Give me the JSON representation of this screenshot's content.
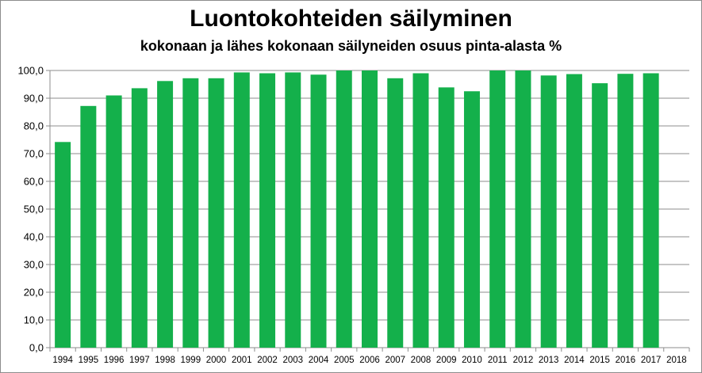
{
  "chart_data": {
    "type": "bar",
    "title": "Luontokohteiden säilyminen",
    "subtitle": "kokonaan ja lähes kokonaan säilyneiden  osuus pinta-alasta %",
    "xlabel": "",
    "ylabel": "",
    "categories": [
      "1994",
      "1995",
      "1996",
      "1997",
      "1998",
      "1999",
      "2000",
      "2001",
      "2002",
      "2003",
      "2004",
      "2005",
      "2006",
      "2007",
      "2008",
      "2009",
      "2010",
      "2011",
      "2012",
      "2013",
      "2014",
      "2015",
      "2016",
      "2017",
      "2018"
    ],
    "values": [
      74.2,
      87.2,
      91.0,
      93.6,
      96.2,
      97.2,
      97.2,
      99.3,
      99.0,
      99.3,
      98.5,
      100.0,
      100.0,
      97.2,
      99.0,
      93.9,
      92.5,
      100.0,
      100.0,
      98.2,
      98.7,
      95.4,
      98.8,
      99.0,
      null
    ],
    "ylim": [
      0,
      100
    ],
    "yticks": [
      "0,0",
      "10,0",
      "20,0",
      "30,0",
      "40,0",
      "50,0",
      "60,0",
      "70,0",
      "80,0",
      "90,0",
      "100,0"
    ],
    "grid": true,
    "legend": "none",
    "bar_color": "#14b04b",
    "grid_color": "#8c8c8c"
  }
}
